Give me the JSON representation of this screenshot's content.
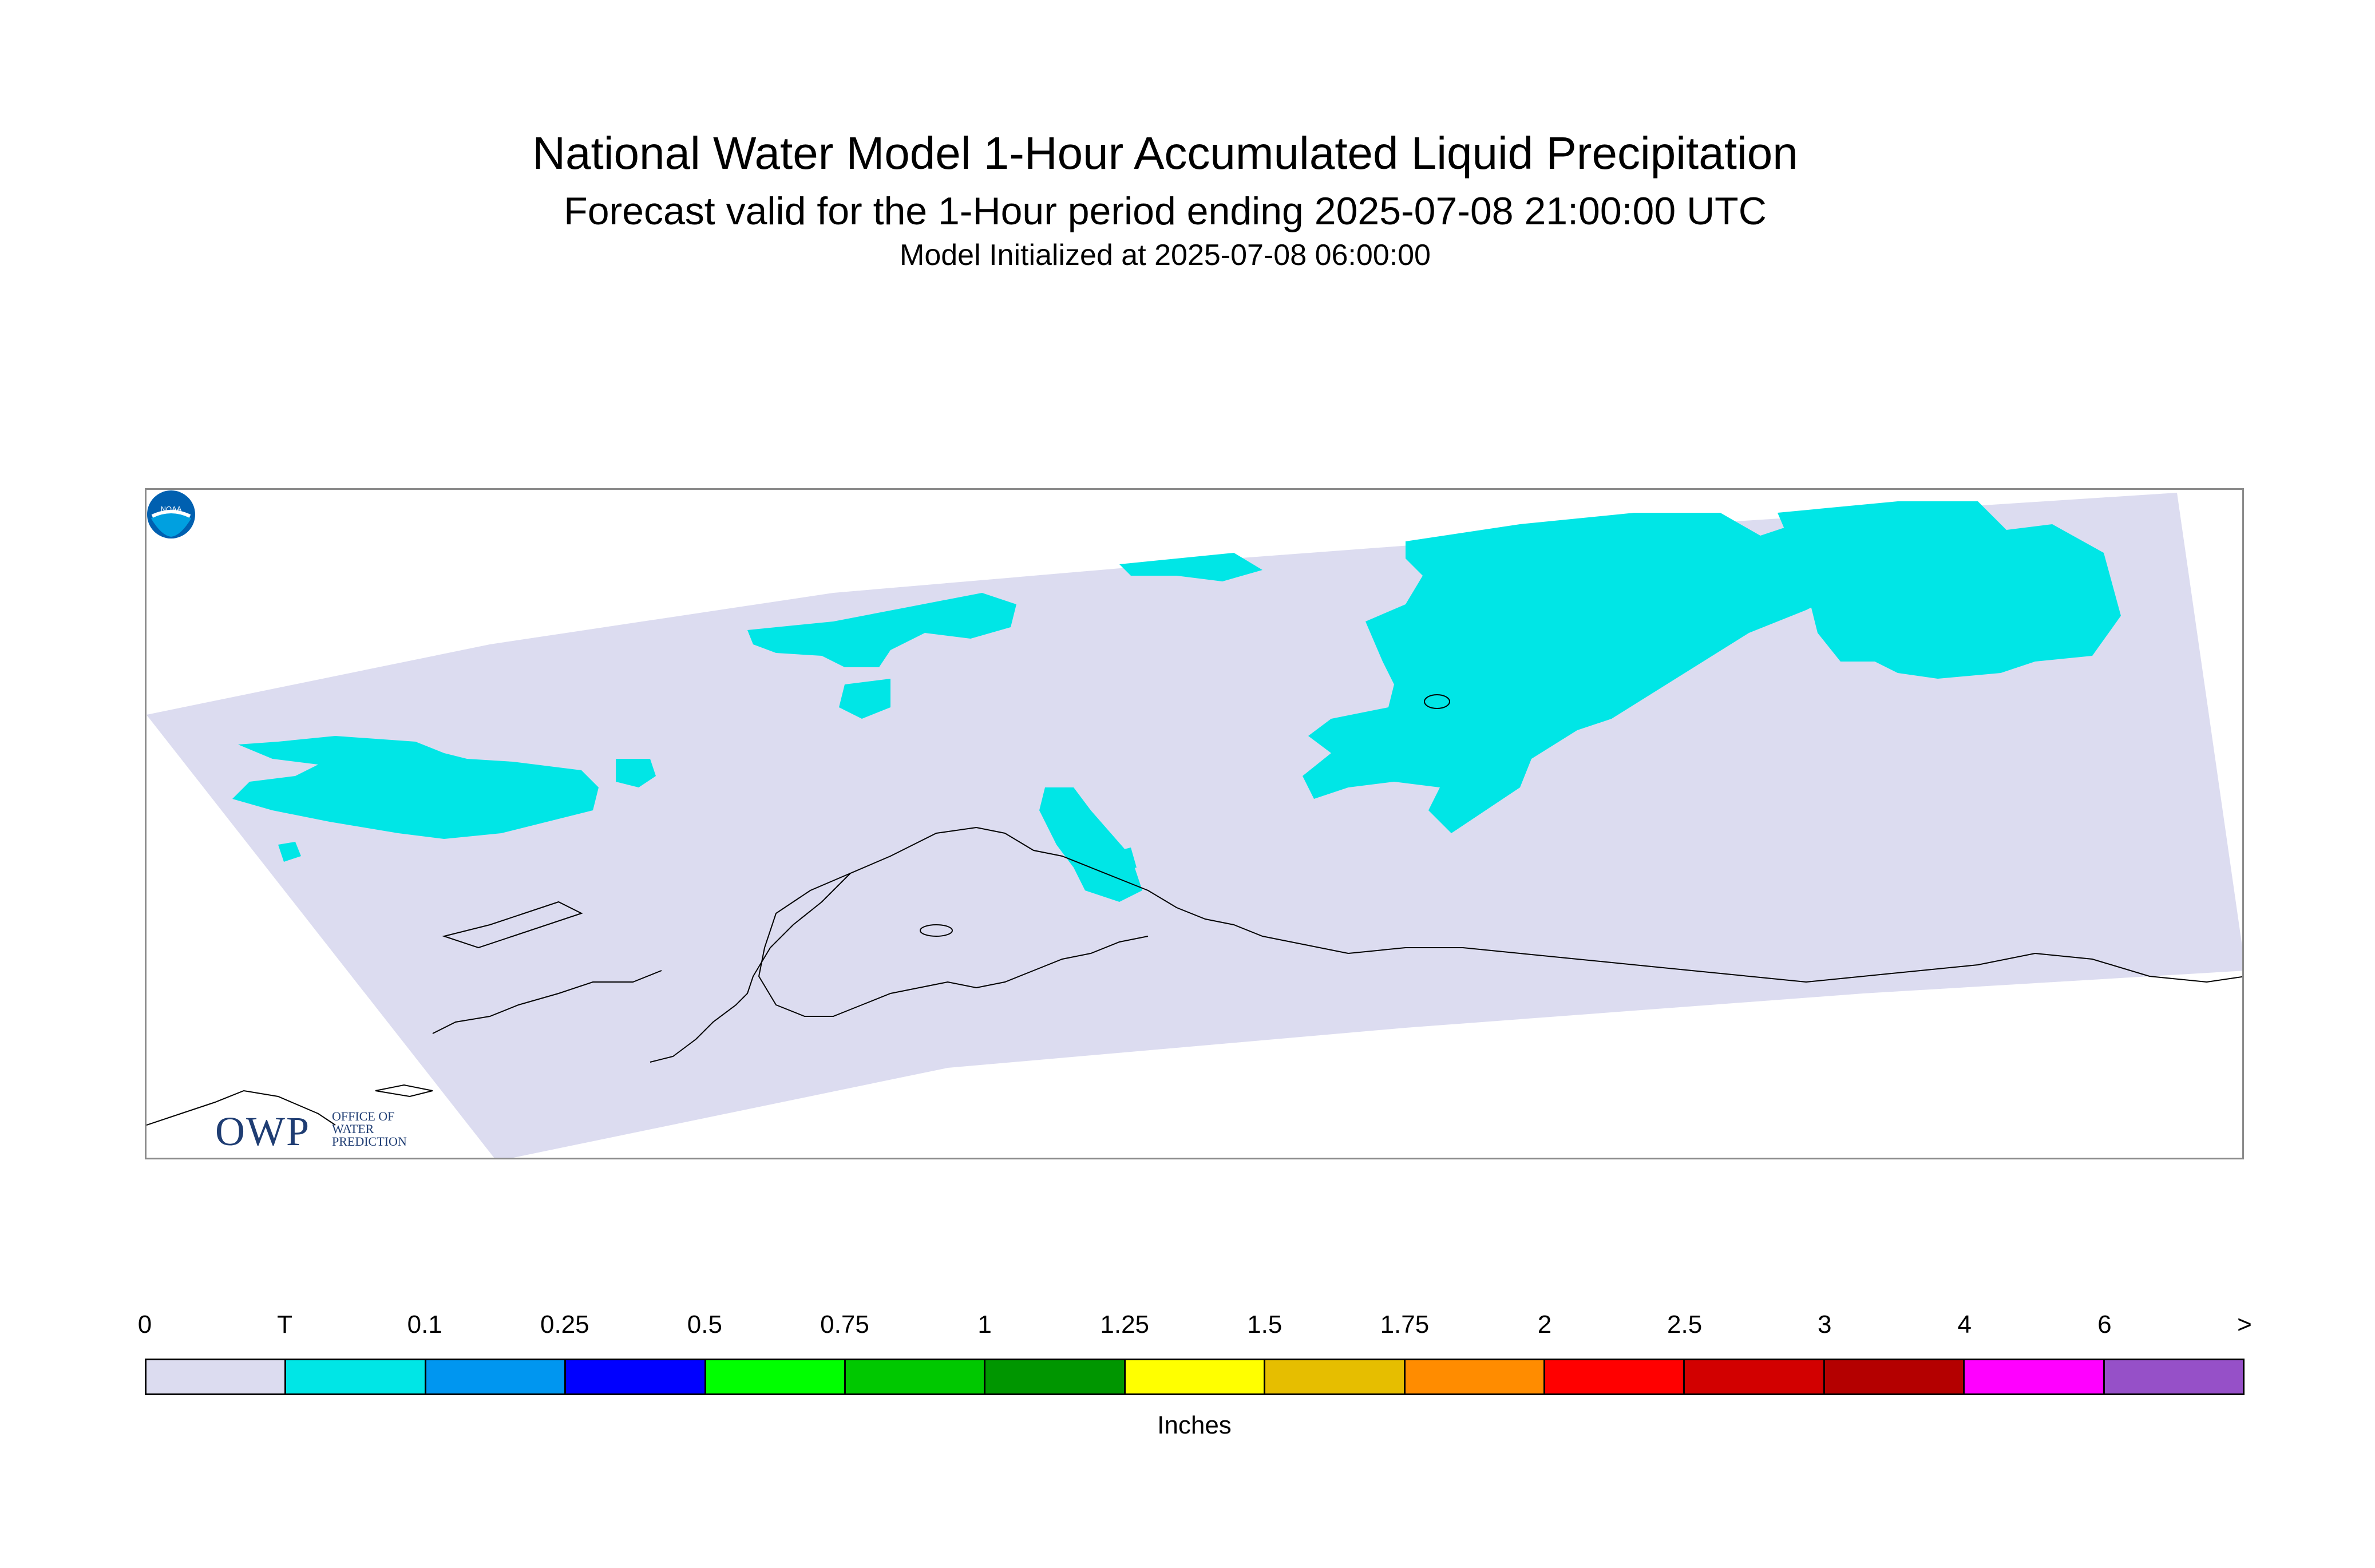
{
  "title": "National Water Model 1-Hour Accumulated Liquid Precipitation",
  "subtitle": "Forecast valid for the 1-Hour period ending 2025-07-08 21:00:00 UTC",
  "init_line": "Model Initialized at 2025-07-08 06:00:00",
  "logos": {
    "owp_letters": "OWP",
    "owp_text": [
      "OFFICE OF",
      "WATER",
      "PREDICTION"
    ],
    "noaa_text": "NOAA"
  },
  "legend": {
    "units": "Inches",
    "tick_labels": [
      "0",
      "T",
      "0.1",
      "0.25",
      "0.5",
      "0.75",
      "1",
      "1.25",
      "1.5",
      "1.75",
      "2",
      "2.5",
      "3",
      "4",
      "6",
      ">"
    ],
    "colors": [
      "#dcdcf0",
      "#00e6e6",
      "#0096f0",
      "#0000ff",
      "#00ff00",
      "#00c800",
      "#009600",
      "#ffff00",
      "#e6be00",
      "#ff8c00",
      "#ff0000",
      "#d20000",
      "#b40000",
      "#ff00ff",
      "#9650c8"
    ]
  },
  "map": {
    "domain_color": "#dcdcf0",
    "precip_color": "#00e6e6",
    "coastline_color": "#000000",
    "precip_category": "T"
  }
}
